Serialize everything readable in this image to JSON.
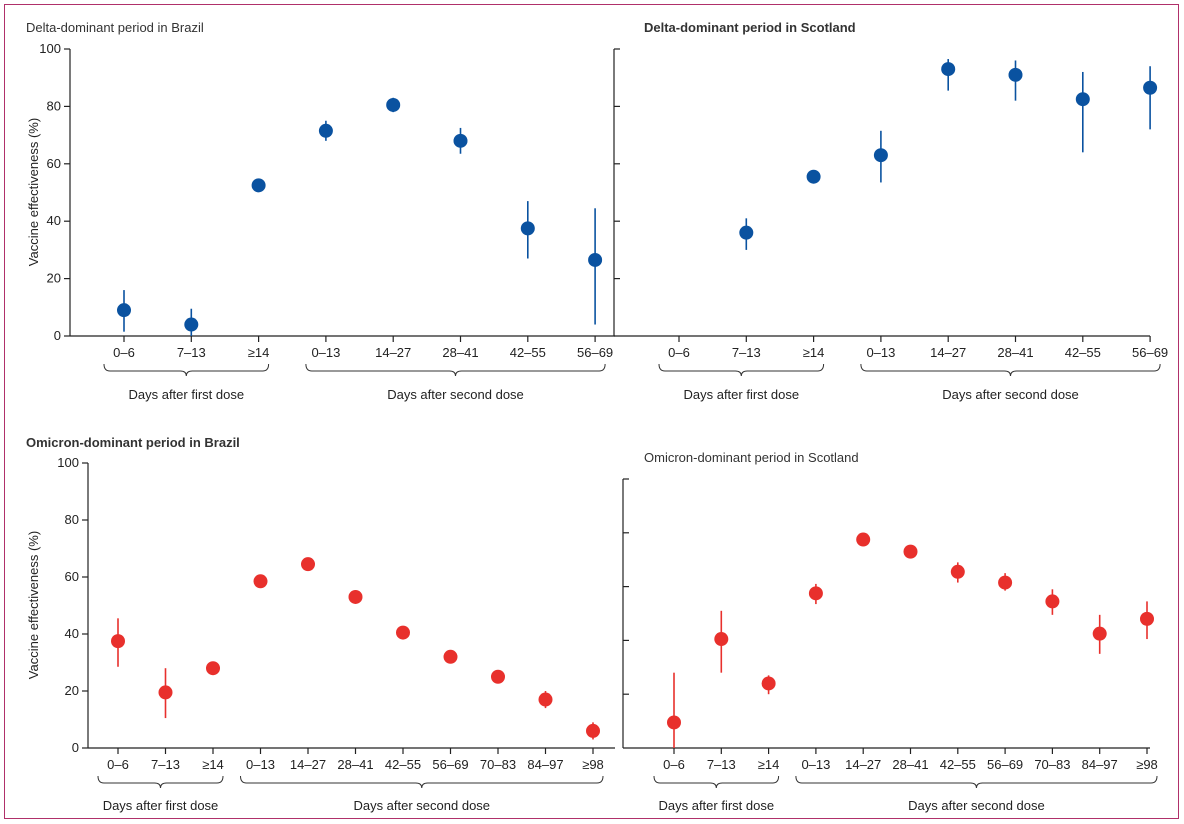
{
  "colors": {
    "delta": "#0a52a0",
    "omicron": "#e8302c",
    "frame": "#b0306a"
  },
  "chart_data": [
    {
      "type": "scatter",
      "title": "Delta-dominant period in Brazil",
      "ylabel": "Vaccine effectiveness (%)",
      "ylim": [
        0,
        100
      ],
      "yticks": [
        0,
        20,
        40,
        60,
        80,
        100
      ],
      "categories": [
        "0–6",
        "7–13",
        "≥14",
        "0–13",
        "14–27",
        "28–41",
        "42–55",
        "56–69"
      ],
      "values": [
        9,
        4,
        52.5,
        71.5,
        80.5,
        68,
        37.5,
        26.5
      ],
      "lower": [
        1.5,
        0,
        52,
        68,
        78,
        63.5,
        27,
        4
      ],
      "upper": [
        16,
        9.5,
        53,
        75,
        83,
        72.5,
        47,
        44.5
      ],
      "groups": [
        {
          "label": "Days after first dose",
          "start": 0,
          "end": 2
        },
        {
          "label": "Days after second dose",
          "start": 3,
          "end": 7
        }
      ],
      "color": "#0a52a0"
    },
    {
      "type": "scatter",
      "title": "Delta-dominant period in Scotland",
      "ylim": [
        0,
        100
      ],
      "categories": [
        "0–6",
        "7–13",
        "≥14",
        "0–13",
        "14–27",
        "28–41",
        "42–55",
        "56–69"
      ],
      "values": [
        null,
        36,
        55.5,
        63,
        93,
        91,
        82.5,
        86.5
      ],
      "lower": [
        null,
        30,
        55,
        53.5,
        85.5,
        82,
        64,
        72
      ],
      "upper": [
        null,
        41,
        56,
        71.5,
        96.5,
        96,
        92,
        94
      ],
      "groups": [
        {
          "label": "Days after first dose",
          "start": 0,
          "end": 2
        },
        {
          "label": "Days after second dose",
          "start": 3,
          "end": 7
        }
      ],
      "color": "#0a52a0"
    },
    {
      "type": "scatter",
      "title": "Omicron-dominant period in Brazil",
      "ylabel": "Vaccine effectiveness (%)",
      "ylim": [
        0,
        100
      ],
      "yticks": [
        0,
        20,
        40,
        60,
        80,
        100
      ],
      "categories": [
        "0–6",
        "7–13",
        "≥14",
        "0–13",
        "14–27",
        "28–41",
        "42–55",
        "56–69",
        "70–83",
        "84–97",
        "≥98"
      ],
      "values": [
        37.5,
        19.5,
        28,
        58.5,
        64.5,
        53,
        40.5,
        32,
        25,
        17,
        6
      ],
      "lower": [
        28.5,
        10.5,
        27,
        57.5,
        63.5,
        52,
        39.5,
        31,
        24,
        14,
        3
      ],
      "upper": [
        45.5,
        28,
        29,
        59.5,
        65.5,
        54,
        41.5,
        33,
        26,
        20,
        9
      ],
      "groups": [
        {
          "label": "Days after first dose",
          "start": 0,
          "end": 2
        },
        {
          "label": "Days after second dose",
          "start": 3,
          "end": 10
        }
      ],
      "color": "#e8302c"
    },
    {
      "type": "scatter",
      "title": "Omicron-dominant period in Scotland",
      "ylim": [
        0,
        100
      ],
      "categories": [
        "0–6",
        "7–13",
        "≥14",
        "0–13",
        "14–27",
        "28–41",
        "42–55",
        "56–69",
        "70–83",
        "84–97",
        "≥98"
      ],
      "values": [
        9.5,
        40.5,
        24,
        57.5,
        77.5,
        73,
        65.5,
        61.5,
        54.5,
        42.5,
        48
      ],
      "lower": [
        0,
        28,
        20,
        53.5,
        76.5,
        71,
        61.5,
        58.5,
        49.5,
        35,
        40.5
      ],
      "upper": [
        28,
        51,
        27,
        61,
        78.5,
        75,
        69,
        65,
        59,
        49.5,
        54.5
      ],
      "groups": [
        {
          "label": "Days after first dose",
          "start": 0,
          "end": 2
        },
        {
          "label": "Days after second dose",
          "start": 3,
          "end": 10
        }
      ],
      "color": "#e8302c"
    }
  ]
}
